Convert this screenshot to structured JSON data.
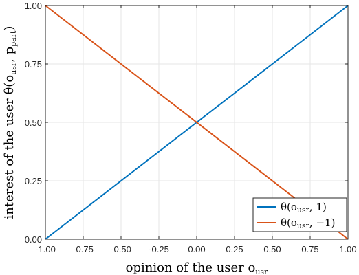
{
  "chart_data": {
    "type": "line",
    "xlabel_main": "opinion of the user o",
    "xlabel_sub": "usr",
    "ylabel_main": "interest of the user θ(o",
    "ylabel_sub1": "usr",
    "ylabel_mid": ", p",
    "ylabel_sub2": "part",
    "ylabel_end": ")",
    "xlim": [
      -1,
      1
    ],
    "ylim": [
      0,
      1
    ],
    "xticks": [
      "-1.00",
      "-0.75",
      "-0.50",
      "-0.25",
      "0.00",
      "0.25",
      "0.50",
      "0.75",
      "1.00"
    ],
    "yticks": [
      "0.00",
      "0.25",
      "0.50",
      "0.75",
      "1.00"
    ],
    "grid": true,
    "legend_position": "bottom-right",
    "series": [
      {
        "name_main": "θ(o",
        "name_sub": "usr",
        "name_end": ", 1)",
        "color": "#0072BD",
        "x": [
          -1,
          1
        ],
        "y": [
          0,
          1
        ]
      },
      {
        "name_main": "θ(o",
        "name_sub": "usr",
        "name_end": ", −1)",
        "color": "#D95319",
        "x": [
          -1,
          1
        ],
        "y": [
          1,
          0
        ]
      }
    ]
  }
}
